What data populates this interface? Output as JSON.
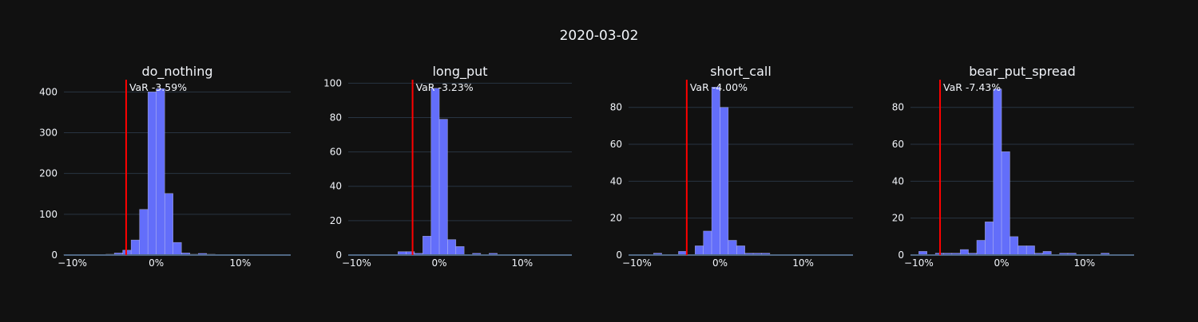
{
  "figure_title": "2020-03-02",
  "colors": {
    "background": "#111111",
    "bar_fill": "#636efa",
    "bar_outline": "#ffffff",
    "var_line": "#ff0000",
    "grid": "#283442",
    "text": "#f2f5fa",
    "axis_line": "#506784"
  },
  "chart_data": [
    {
      "type": "bar",
      "title": "do_nothing",
      "var_label": "VaR -3.59%",
      "var_value": -3.59,
      "xlim": [
        -11,
        16
      ],
      "ylim": [
        0,
        430
      ],
      "xticks": [
        {
          "value": -10,
          "label": "−10%"
        },
        {
          "value": 0,
          "label": "0%"
        },
        {
          "value": 10,
          "label": "10%"
        }
      ],
      "yticks": [
        0,
        100,
        200,
        300,
        400
      ],
      "bin_width": 1,
      "bins": [
        {
          "x0": -11,
          "count": 1
        },
        {
          "x0": -10,
          "count": 1
        },
        {
          "x0": -8,
          "count": 1
        },
        {
          "x0": -6,
          "count": 2
        },
        {
          "x0": -5,
          "count": 5
        },
        {
          "x0": -4,
          "count": 12
        },
        {
          "x0": -3,
          "count": 37
        },
        {
          "x0": -2,
          "count": 112
        },
        {
          "x0": -1,
          "count": 400
        },
        {
          "x0": 0,
          "count": 408
        },
        {
          "x0": 1,
          "count": 151
        },
        {
          "x0": 2,
          "count": 31
        },
        {
          "x0": 3,
          "count": 5
        },
        {
          "x0": 4,
          "count": 2
        },
        {
          "x0": 5,
          "count": 4
        },
        {
          "x0": 6,
          "count": 2
        },
        {
          "x0": 8,
          "count": 1
        },
        {
          "x0": 9,
          "count": 1
        }
      ]
    },
    {
      "type": "bar",
      "title": "long_put",
      "var_label": "VaR -3.23%",
      "var_value": -3.23,
      "xlim": [
        -11,
        16
      ],
      "ylim": [
        0,
        102
      ],
      "xticks": [
        {
          "value": -10,
          "label": "−10%"
        },
        {
          "value": 0,
          "label": "0%"
        },
        {
          "value": 10,
          "label": "10%"
        }
      ],
      "yticks": [
        0,
        20,
        40,
        60,
        80,
        100
      ],
      "bin_width": 1,
      "bins": [
        {
          "x0": -5,
          "count": 2
        },
        {
          "x0": -4,
          "count": 2
        },
        {
          "x0": -3,
          "count": 1
        },
        {
          "x0": -2,
          "count": 11
        },
        {
          "x0": -1,
          "count": 97
        },
        {
          "x0": 0,
          "count": 79
        },
        {
          "x0": 1,
          "count": 9
        },
        {
          "x0": 2,
          "count": 5
        },
        {
          "x0": 4,
          "count": 1
        },
        {
          "x0": 6,
          "count": 1
        }
      ]
    },
    {
      "type": "bar",
      "title": "short_call",
      "var_label": "VaR -4.00%",
      "var_value": -4.0,
      "xlim": [
        -11,
        16
      ],
      "ylim": [
        0,
        95
      ],
      "xticks": [
        {
          "value": -10,
          "label": "−10%"
        },
        {
          "value": 0,
          "label": "0%"
        },
        {
          "value": 10,
          "label": "10%"
        }
      ],
      "yticks": [
        0,
        20,
        40,
        60,
        80
      ],
      "bin_width": 1,
      "bins": [
        {
          "x0": -8,
          "count": 1
        },
        {
          "x0": -5,
          "count": 2
        },
        {
          "x0": -3,
          "count": 5
        },
        {
          "x0": -2,
          "count": 13
        },
        {
          "x0": -1,
          "count": 91
        },
        {
          "x0": 0,
          "count": 80
        },
        {
          "x0": 1,
          "count": 8
        },
        {
          "x0": 2,
          "count": 5
        },
        {
          "x0": 3,
          "count": 1
        },
        {
          "x0": 4,
          "count": 1
        },
        {
          "x0": 5,
          "count": 1
        }
      ]
    },
    {
      "type": "bar",
      "title": "bear_put_spread",
      "var_label": "VaR -7.43%",
      "var_value": -7.43,
      "xlim": [
        -11,
        16
      ],
      "ylim": [
        0,
        95
      ],
      "xticks": [
        {
          "value": -10,
          "label": "−10%"
        },
        {
          "value": 0,
          "label": "0%"
        },
        {
          "value": 10,
          "label": "10%"
        }
      ],
      "yticks": [
        0,
        20,
        40,
        60,
        80
      ],
      "bin_width": 1,
      "bins": [
        {
          "x0": -10,
          "count": 2
        },
        {
          "x0": -8,
          "count": 1
        },
        {
          "x0": -7,
          "count": 1
        },
        {
          "x0": -6,
          "count": 1
        },
        {
          "x0": -5,
          "count": 3
        },
        {
          "x0": -4,
          "count": 1
        },
        {
          "x0": -3,
          "count": 8
        },
        {
          "x0": -2,
          "count": 18
        },
        {
          "x0": -1,
          "count": 90
        },
        {
          "x0": 0,
          "count": 56
        },
        {
          "x0": 1,
          "count": 10
        },
        {
          "x0": 2,
          "count": 5
        },
        {
          "x0": 3,
          "count": 5
        },
        {
          "x0": 4,
          "count": 1
        },
        {
          "x0": 5,
          "count": 2
        },
        {
          "x0": 7,
          "count": 1
        },
        {
          "x0": 8,
          "count": 1
        },
        {
          "x0": 12,
          "count": 1
        },
        {
          "x0": 16,
          "count": 1
        }
      ]
    }
  ]
}
